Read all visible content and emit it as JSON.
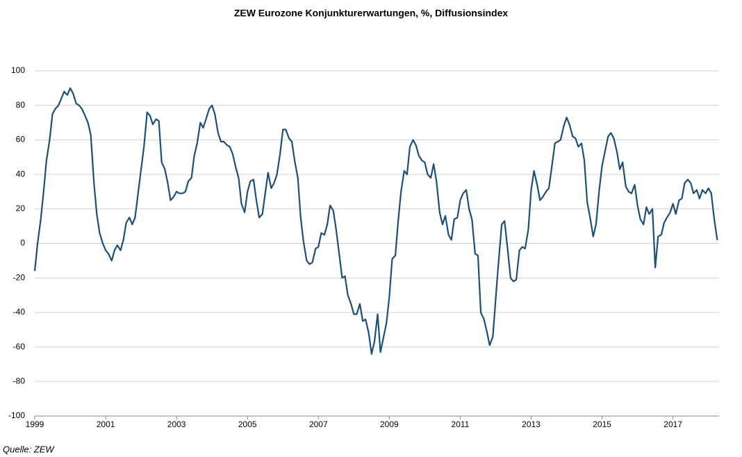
{
  "chart_data": {
    "type": "line",
    "title": "ZEW Eurozone Konjunkturerwartungen, %, Diffusionsindex",
    "source": "Quelle: ZEW",
    "color": "#1b4f7b",
    "grid": true,
    "xlim": [
      1999,
      2018.3
    ],
    "xticks": [
      1999,
      2001,
      2003,
      2005,
      2007,
      2009,
      2011,
      2013,
      2015,
      2017
    ],
    "ylim": [
      -100,
      100
    ],
    "yticks": [
      -100,
      -80,
      -60,
      -40,
      -20,
      0,
      20,
      40,
      60,
      80,
      100
    ],
    "x": [
      1999,
      1999.08,
      1999.17,
      1999.25,
      1999.33,
      1999.42,
      1999.5,
      1999.58,
      1999.67,
      1999.75,
      1999.83,
      1999.92,
      2000,
      2000.08,
      2000.17,
      2000.25,
      2000.33,
      2000.42,
      2000.5,
      2000.58,
      2000.67,
      2000.75,
      2000.83,
      2000.92,
      2001,
      2001.08,
      2001.17,
      2001.25,
      2001.33,
      2001.42,
      2001.5,
      2001.58,
      2001.67,
      2001.75,
      2001.83,
      2001.92,
      2002,
      2002.08,
      2002.17,
      2002.25,
      2002.33,
      2002.42,
      2002.5,
      2002.58,
      2002.67,
      2002.75,
      2002.83,
      2002.92,
      2003,
      2003.08,
      2003.17,
      2003.25,
      2003.33,
      2003.42,
      2003.5,
      2003.58,
      2003.67,
      2003.75,
      2003.83,
      2003.92,
      2004,
      2004.08,
      2004.17,
      2004.25,
      2004.33,
      2004.42,
      2004.5,
      2004.58,
      2004.67,
      2004.75,
      2004.83,
      2004.92,
      2005,
      2005.08,
      2005.17,
      2005.25,
      2005.33,
      2005.42,
      2005.5,
      2005.58,
      2005.67,
      2005.75,
      2005.83,
      2005.92,
      2006,
      2006.08,
      2006.17,
      2006.25,
      2006.33,
      2006.42,
      2006.5,
      2006.58,
      2006.67,
      2006.75,
      2006.83,
      2006.92,
      2007,
      2007.08,
      2007.17,
      2007.25,
      2007.33,
      2007.42,
      2007.5,
      2007.58,
      2007.67,
      2007.75,
      2007.83,
      2007.92,
      2008,
      2008.08,
      2008.17,
      2008.25,
      2008.33,
      2008.42,
      2008.5,
      2008.58,
      2008.67,
      2008.75,
      2008.83,
      2008.92,
      2009,
      2009.08,
      2009.17,
      2009.25,
      2009.33,
      2009.42,
      2009.5,
      2009.58,
      2009.67,
      2009.75,
      2009.83,
      2009.92,
      2010,
      2010.08,
      2010.17,
      2010.25,
      2010.33,
      2010.42,
      2010.5,
      2010.58,
      2010.67,
      2010.75,
      2010.83,
      2010.92,
      2011,
      2011.08,
      2011.17,
      2011.25,
      2011.33,
      2011.42,
      2011.5,
      2011.58,
      2011.67,
      2011.75,
      2011.83,
      2011.92,
      2012,
      2012.08,
      2012.17,
      2012.25,
      2012.33,
      2012.42,
      2012.5,
      2012.58,
      2012.67,
      2012.75,
      2012.83,
      2012.92,
      2013,
      2013.08,
      2013.17,
      2013.25,
      2013.33,
      2013.42,
      2013.5,
      2013.58,
      2013.67,
      2013.75,
      2013.83,
      2013.92,
      2014,
      2014.08,
      2014.17,
      2014.25,
      2014.33,
      2014.42,
      2014.5,
      2014.58,
      2014.67,
      2014.75,
      2014.83,
      2014.92,
      2015,
      2015.08,
      2015.17,
      2015.25,
      2015.33,
      2015.42,
      2015.5,
      2015.58,
      2015.67,
      2015.75,
      2015.83,
      2015.92,
      2016,
      2016.08,
      2016.17,
      2016.25,
      2016.33,
      2016.42,
      2016.5,
      2016.58,
      2016.67,
      2016.75,
      2016.83,
      2016.92,
      2017,
      2017.08,
      2017.17,
      2017.25,
      2017.33,
      2017.42,
      2017.5,
      2017.58,
      2017.67,
      2017.75,
      2017.83,
      2017.92,
      2018,
      2018.08,
      2018.17,
      2018.25
    ],
    "values": [
      -16,
      0,
      14,
      30,
      48,
      60,
      75,
      78,
      80,
      84,
      88,
      86,
      90,
      87,
      81,
      80,
      78,
      74,
      70,
      63,
      35,
      17,
      6,
      0,
      -4,
      -6,
      -10,
      -4,
      -1,
      -4,
      2,
      12,
      15,
      11,
      15,
      30,
      43,
      56,
      76,
      74,
      69,
      72,
      71,
      47,
      43,
      35,
      25,
      27,
      30,
      29,
      29,
      30,
      36,
      38,
      51,
      58,
      70,
      67,
      72,
      78,
      80,
      75,
      64,
      59,
      59,
      57,
      56,
      52,
      44,
      38,
      23,
      18,
      30,
      36,
      37,
      25,
      15,
      17,
      29,
      41,
      32,
      35,
      40,
      52,
      66,
      66,
      61,
      59,
      48,
      38,
      15,
      1,
      -10,
      -12,
      -11,
      -3,
      -2,
      6,
      5,
      11,
      22,
      19,
      8,
      -5,
      -20,
      -19,
      -30,
      -35,
      -41,
      -41,
      -35,
      -45,
      -44,
      -52,
      -64,
      -57,
      -41,
      -63,
      -55,
      -46,
      -31,
      -9,
      -7,
      13,
      30,
      42,
      40,
      56,
      60,
      57,
      51,
      48,
      47,
      40,
      38,
      46,
      36,
      18,
      11,
      16,
      5,
      2,
      14,
      15,
      25,
      29,
      31,
      20,
      14,
      -6,
      -7,
      -40,
      -44,
      -51,
      -59,
      -54,
      -32,
      -11,
      11,
      13,
      -2,
      -20,
      -22,
      -21,
      -4,
      -2,
      -3,
      8,
      31,
      42,
      34,
      25,
      27,
      30,
      32,
      44,
      58,
      59,
      60,
      68,
      73,
      69,
      62,
      61,
      56,
      58,
      48,
      24,
      14,
      4,
      11,
      31,
      45,
      53,
      62,
      64,
      61,
      53,
      43,
      47,
      33,
      30,
      29,
      34,
      22,
      14,
      11,
      21,
      17,
      20,
      -14,
      4,
      5,
      12,
      15,
      18,
      23,
      17,
      25,
      26,
      35,
      37,
      35,
      29,
      31,
      26,
      31,
      29,
      32,
      29,
      13,
      2
    ]
  }
}
